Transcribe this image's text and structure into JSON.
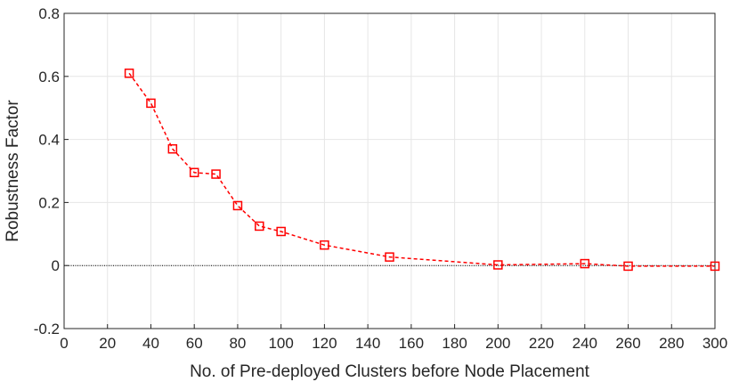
{
  "chart_data": {
    "type": "line",
    "title": "",
    "xlabel": "No. of Pre-deployed Clusters before Node Placement",
    "ylabel": "Robustness Factor",
    "xlim": [
      0,
      300
    ],
    "ylim": [
      -0.2,
      0.8
    ],
    "x_ticks": [
      0,
      20,
      40,
      60,
      80,
      100,
      120,
      140,
      160,
      180,
      200,
      220,
      240,
      260,
      280,
      300
    ],
    "y_ticks": [
      -0.2,
      0,
      0.2,
      0.4,
      0.6,
      0.8
    ],
    "x_tick_labels": [
      "0",
      "20",
      "40",
      "60",
      "80",
      "100",
      "120",
      "140",
      "160",
      "180",
      "200",
      "220",
      "240",
      "260",
      "280",
      "300"
    ],
    "y_tick_labels": [
      "-0.2",
      "0",
      "0.2",
      "0.4",
      "0.6",
      "0.8"
    ],
    "grid": true,
    "reference_line": {
      "y": 0,
      "style": "dotted",
      "color": "#000000"
    },
    "series": [
      {
        "marker": "square",
        "line_style": "dashed",
        "color": "#ff0000",
        "x": [
          30,
          40,
          50,
          60,
          70,
          80,
          90,
          100,
          120,
          150,
          200,
          240,
          260,
          300
        ],
        "y": [
          0.61,
          0.515,
          0.37,
          0.295,
          0.29,
          0.19,
          0.125,
          0.108,
          0.065,
          0.027,
          0.002,
          0.006,
          -0.002,
          -0.002
        ]
      }
    ]
  }
}
